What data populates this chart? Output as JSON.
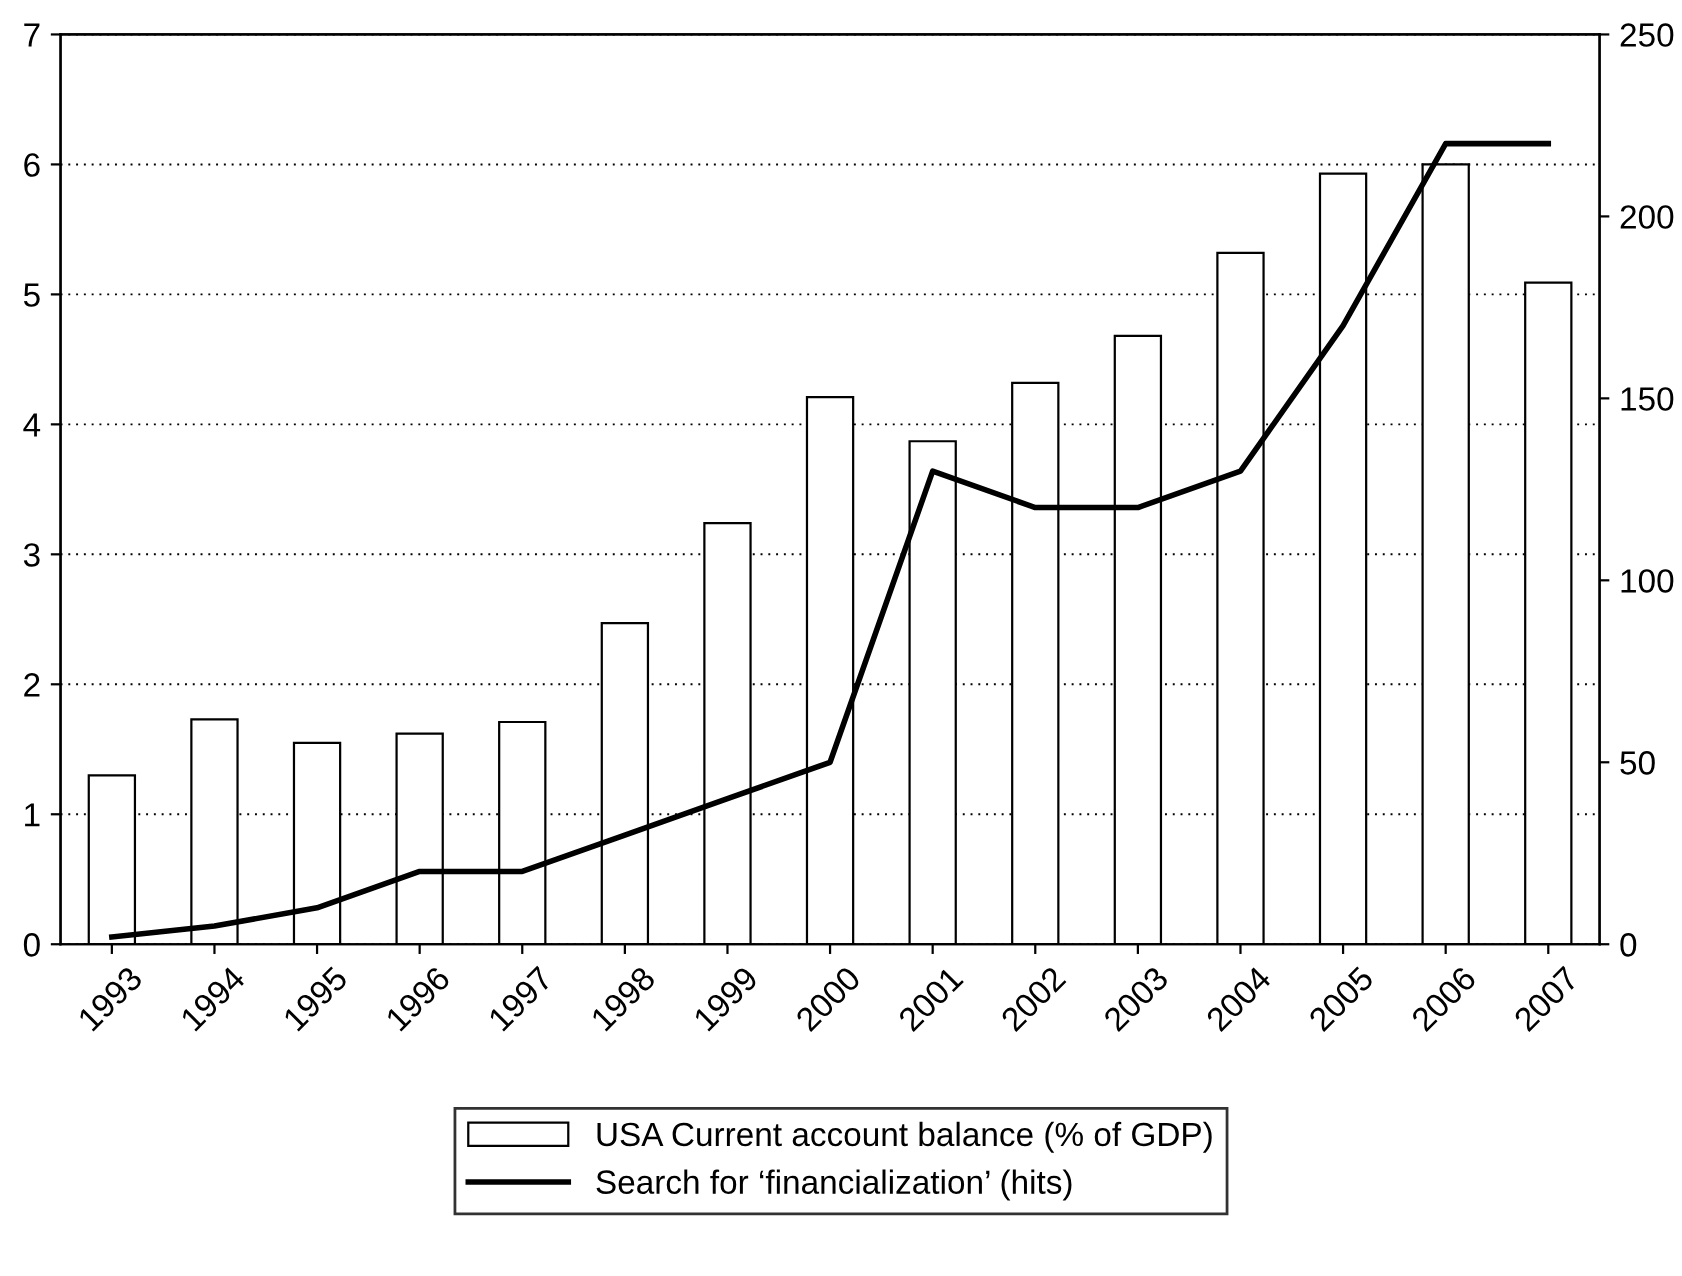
{
  "chart_data": {
    "type": "bar",
    "categories": [
      "1993",
      "1994",
      "1995",
      "1996",
      "1997",
      "1998",
      "1999",
      "2000",
      "2001",
      "2002",
      "2003",
      "2004",
      "2005",
      "2006",
      "2007"
    ],
    "series": [
      {
        "name": "USA Current account balance (% of GDP)",
        "type": "bar",
        "color": "#ffffff",
        "values": [
          1.3,
          1.73,
          1.55,
          1.62,
          1.71,
          2.47,
          3.24,
          4.21,
          3.87,
          4.32,
          4.68,
          5.32,
          5.93,
          6.0,
          5.09
        ]
      },
      {
        "name": "Search for ‘financialization’ (hits)",
        "type": "line",
        "axis": "y2",
        "color": "#000000",
        "values": [
          2,
          5,
          10,
          20,
          20,
          30,
          40,
          50,
          130,
          120,
          120,
          130,
          170,
          220,
          220
        ]
      }
    ],
    "ylim": [
      0,
      7
    ],
    "yticks": [
      0,
      1,
      2,
      3,
      4,
      5,
      6,
      7
    ],
    "y2lim": [
      0,
      250
    ],
    "y2ticks": [
      0,
      50,
      100,
      150,
      200,
      250
    ],
    "grid": "y",
    "legend": "bottom",
    "marker": "none",
    "line_style": "solid"
  }
}
